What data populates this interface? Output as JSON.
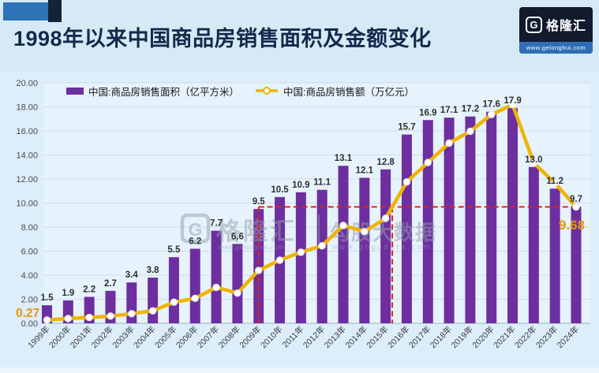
{
  "header": {
    "title": "1998年以来中国商品房销售面积及金额变化",
    "logo": {
      "glyph": "G",
      "name": "格隆汇",
      "url": "www.gelonghui.com"
    }
  },
  "legend": [
    {
      "type": "bar",
      "label": "中国:商品房销售面积（亿平方米）",
      "color": "#6d2f9f"
    },
    {
      "type": "line",
      "label": "中国:商品房销售额（万亿元）",
      "color": "#eeb402"
    }
  ],
  "watermark": {
    "glyph": "G",
    "brand1": "格隆汇",
    "url1": "www.gelonghui.com",
    "brand2": "勾股大数据",
    "url2": "www.gogudata.com"
  },
  "chart_data": {
    "type": "bar+line",
    "categories": [
      "1999年",
      "2000年",
      "2001年",
      "2002年",
      "2003年",
      "2004年",
      "2005年",
      "2006年",
      "2007年",
      "2008年",
      "2009年",
      "2010年",
      "2011年",
      "2012年",
      "2013年",
      "2014年",
      "2015年",
      "2016年",
      "2017年",
      "2018年",
      "2019年",
      "2020年",
      "2021年",
      "2022年",
      "2023年",
      "2024年"
    ],
    "series": [
      {
        "name": "中国:商品房销售面积（亿平方米）",
        "type": "bar",
        "color": "#6d2f9f",
        "values": [
          1.5,
          1.9,
          2.2,
          2.7,
          3.4,
          3.8,
          5.5,
          6.2,
          7.7,
          6.6,
          9.5,
          10.5,
          10.9,
          11.1,
          13.1,
          12.1,
          12.8,
          15.7,
          16.9,
          17.1,
          17.2,
          17.6,
          17.9,
          13.0,
          11.2,
          9.7
        ]
      },
      {
        "name": "中国:商品房销售额（万亿元）",
        "type": "line",
        "color": "#eeb402",
        "values": [
          0.27,
          0.4,
          0.49,
          0.6,
          0.8,
          1.04,
          1.76,
          2.08,
          2.99,
          2.51,
          4.4,
          5.25,
          5.91,
          6.45,
          8.14,
          7.63,
          8.73,
          11.76,
          13.37,
          14.99,
          15.97,
          17.36,
          18.19,
          13.33,
          11.66,
          9.68
        ],
        "first_point_label": "0.27",
        "last_point_label": "9.68"
      }
    ],
    "ylim": [
      0,
      20
    ],
    "ytick_step": 2,
    "ytick_decimals": 2,
    "grid": true,
    "legend_position": "top-left",
    "annotation": {
      "dashed_level": 9.68,
      "vertical_line_year": "2009年",
      "color": "#e0201c"
    },
    "colors": {
      "bar": "#6d2f9f",
      "line": "#eeb402",
      "marker_fill": "#ffffff",
      "annotation_red": "#e0201c",
      "value_label": "#2f2f2f",
      "axis_label": "#4a4a4a",
      "gridline": "#ccdde8",
      "orange_label": "#e8950e",
      "plot_bg": "#e6f3fc",
      "watermark_grey": "#939fa9"
    }
  }
}
